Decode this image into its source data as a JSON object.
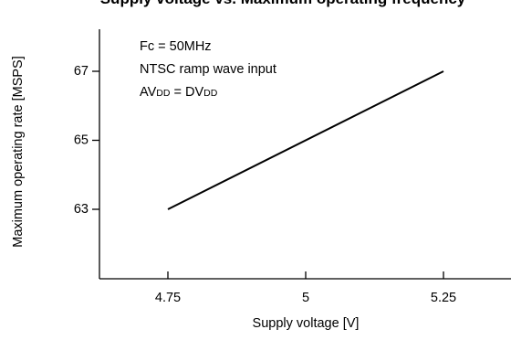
{
  "chart_data": {
    "type": "line",
    "title": "Supply voltage vs. Maximum operating frequency",
    "xlabel": "Supply voltage [V]",
    "ylabel": "Maximum operating rate [MSPS]",
    "xlim": [
      4.5,
      5.5
    ],
    "ylim": [
      61,
      68.5
    ],
    "xticks": [
      4.75,
      5,
      5.25
    ],
    "xtick_labels": [
      "4.75",
      "5",
      "5.25"
    ],
    "yticks": [
      63,
      65,
      67
    ],
    "ytick_labels": [
      "63",
      "65",
      "67"
    ],
    "grid": false,
    "series": [
      {
        "x": [
          4.75,
          5.25
        ],
        "y": [
          63,
          67
        ]
      }
    ],
    "annotations": {
      "line1": "Fc = 50MHz",
      "line2": "NTSC ramp wave input",
      "line3_a": "AV",
      "line3_b": "DD",
      "line3_c": " = DV",
      "line3_d": "DD"
    }
  }
}
